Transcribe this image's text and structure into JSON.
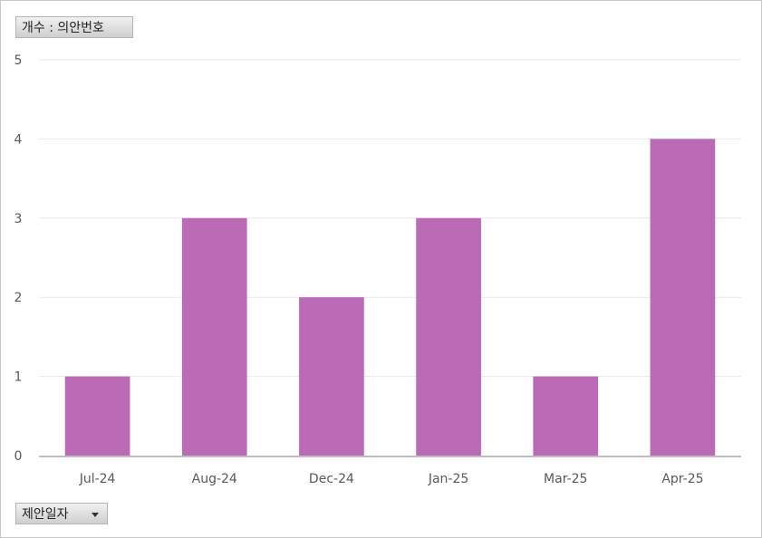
{
  "value_field_button": {
    "label": "개수 : 의안번호"
  },
  "axis_field_button": {
    "label": "제안일자",
    "icon": "dropdown-arrow-icon"
  },
  "chart_data": {
    "type": "bar",
    "categories": [
      "Jul-24",
      "Aug-24",
      "Dec-24",
      "Jan-25",
      "Mar-25",
      "Apr-25"
    ],
    "values": [
      1,
      3,
      2,
      3,
      1,
      4
    ],
    "y_ticks": [
      0,
      1,
      2,
      3,
      4,
      5
    ],
    "ylim": [
      0,
      5
    ],
    "grid": true,
    "legend": "none",
    "title": "",
    "xlabel": "",
    "ylabel": "",
    "colors": {
      "bar": "#bb6bb5",
      "gridline": "#e9e9e9",
      "axis_line": "#bfbfbf",
      "tick_label": "#595959"
    }
  }
}
